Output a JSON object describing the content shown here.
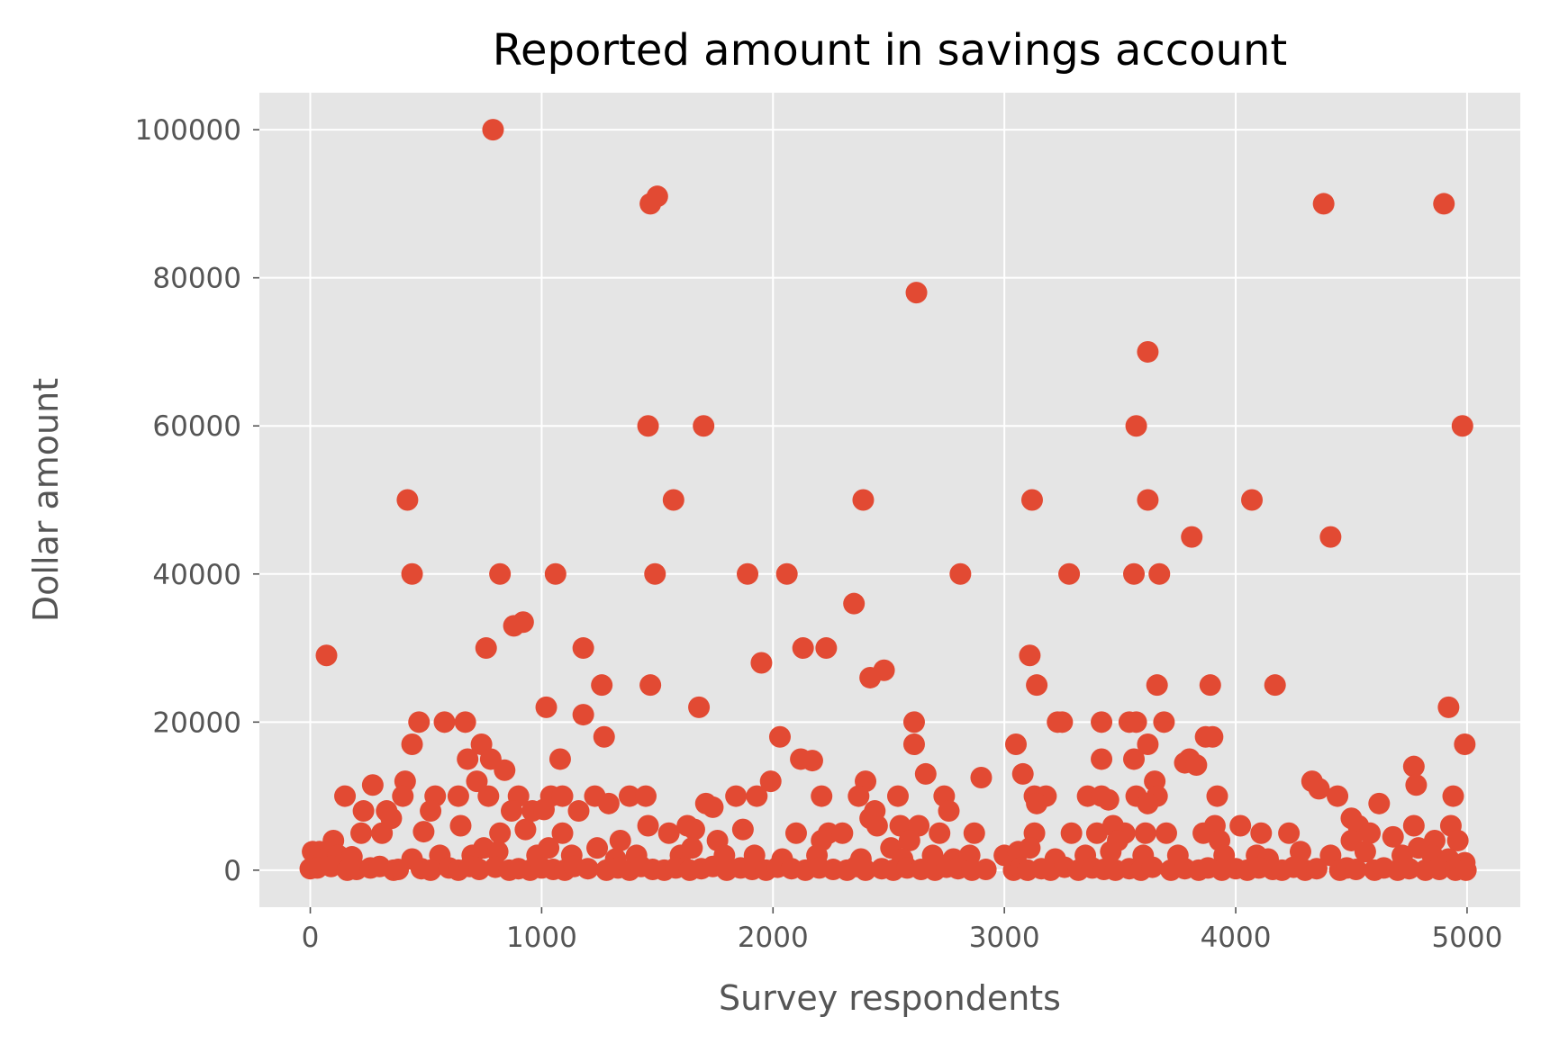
{
  "chart_data": {
    "type": "scatter",
    "title": "Reported amount in savings account",
    "xlabel": "Survey respondents",
    "ylabel": "Dollar amount",
    "xlim": [
      -220,
      5230
    ],
    "ylim": [
      -5000,
      105000
    ],
    "xticks": [
      0,
      1000,
      2000,
      3000,
      4000,
      5000
    ],
    "yticks": [
      0,
      20000,
      40000,
      60000,
      80000,
      100000
    ],
    "grid": true,
    "style": "ggplot",
    "background_color": "#e5e5e5",
    "marker_color": "#e24a33",
    "points": [
      [
        790,
        100000
      ],
      [
        1500,
        91000
      ],
      [
        1470,
        90000
      ],
      [
        4380,
        90000
      ],
      [
        4900,
        90000
      ],
      [
        2620,
        78000
      ],
      [
        3620,
        70000
      ],
      [
        1460,
        60000
      ],
      [
        1700,
        60000
      ],
      [
        3570,
        60000
      ],
      [
        4980,
        60000
      ],
      [
        420,
        50000
      ],
      [
        1570,
        50000
      ],
      [
        2390,
        50000
      ],
      [
        3120,
        50000
      ],
      [
        3620,
        50000
      ],
      [
        4070,
        50000
      ],
      [
        3810,
        45000
      ],
      [
        4410,
        45000
      ],
      [
        440,
        40000
      ],
      [
        820,
        40000
      ],
      [
        1060,
        40000
      ],
      [
        1490,
        40000
      ],
      [
        1890,
        40000
      ],
      [
        2060,
        40000
      ],
      [
        2810,
        40000
      ],
      [
        3280,
        40000
      ],
      [
        3560,
        40000
      ],
      [
        3670,
        40000
      ],
      [
        2350,
        36000
      ],
      [
        880,
        33000
      ],
      [
        920,
        33500
      ],
      [
        70,
        29000
      ],
      [
        760,
        30000
      ],
      [
        1180,
        30000
      ],
      [
        2130,
        30000
      ],
      [
        2230,
        30000
      ],
      [
        3110,
        29000
      ],
      [
        1950,
        28000
      ],
      [
        2480,
        27000
      ],
      [
        2420,
        26000
      ],
      [
        1470,
        25000
      ],
      [
        1260,
        25000
      ],
      [
        3140,
        25000
      ],
      [
        3660,
        25000
      ],
      [
        3890,
        25000
      ],
      [
        4170,
        25000
      ],
      [
        1020,
        22000
      ],
      [
        1680,
        22000
      ],
      [
        4920,
        22000
      ],
      [
        1180,
        21000
      ],
      [
        470,
        20000
      ],
      [
        580,
        20000
      ],
      [
        670,
        20000
      ],
      [
        2610,
        20000
      ],
      [
        3230,
        20000
      ],
      [
        3250,
        20000
      ],
      [
        3420,
        20000
      ],
      [
        3540,
        20000
      ],
      [
        3570,
        20000
      ],
      [
        3690,
        20000
      ],
      [
        1270,
        18000
      ],
      [
        2030,
        18000
      ],
      [
        3870,
        18000
      ],
      [
        3900,
        18000
      ],
      [
        440,
        17000
      ],
      [
        740,
        17000
      ],
      [
        2610,
        17000
      ],
      [
        3050,
        17000
      ],
      [
        3620,
        17000
      ],
      [
        4990,
        17000
      ],
      [
        680,
        15000
      ],
      [
        780,
        15000
      ],
      [
        1080,
        15000
      ],
      [
        2120,
        15000
      ],
      [
        2170,
        14800
      ],
      [
        3420,
        15000
      ],
      [
        3560,
        15000
      ],
      [
        3800,
        15000
      ],
      [
        3780,
        14500
      ],
      [
        4770,
        14000
      ],
      [
        840,
        13500
      ],
      [
        2660,
        13000
      ],
      [
        3080,
        13000
      ],
      [
        3830,
        14200
      ],
      [
        410,
        12000
      ],
      [
        720,
        12000
      ],
      [
        1990,
        12000
      ],
      [
        2400,
        12000
      ],
      [
        2900,
        12500
      ],
      [
        3650,
        12000
      ],
      [
        4330,
        12000
      ],
      [
        4360,
        11000
      ],
      [
        4780,
        11500
      ],
      [
        150,
        10000
      ],
      [
        270,
        11500
      ],
      [
        400,
        10000
      ],
      [
        540,
        10000
      ],
      [
        640,
        10000
      ],
      [
        770,
        10000
      ],
      [
        900,
        10000
      ],
      [
        1040,
        10000
      ],
      [
        1090,
        10000
      ],
      [
        1230,
        10000
      ],
      [
        1380,
        10000
      ],
      [
        1450,
        10000
      ],
      [
        1840,
        10000
      ],
      [
        1930,
        10000
      ],
      [
        2210,
        10000
      ],
      [
        2370,
        10000
      ],
      [
        2540,
        10000
      ],
      [
        2740,
        10000
      ],
      [
        3130,
        10000
      ],
      [
        3180,
        10000
      ],
      [
        3360,
        10000
      ],
      [
        3420,
        10000
      ],
      [
        3450,
        9500
      ],
      [
        3570,
        10000
      ],
      [
        3660,
        10000
      ],
      [
        3920,
        10000
      ],
      [
        4440,
        10000
      ],
      [
        4940,
        10000
      ],
      [
        1710,
        9000
      ],
      [
        1740,
        8500
      ],
      [
        3140,
        9000
      ],
      [
        4620,
        9000
      ],
      [
        3620,
        9000
      ],
      [
        230,
        8000
      ],
      [
        330,
        8000
      ],
      [
        520,
        8000
      ],
      [
        870,
        8000
      ],
      [
        960,
        8000
      ],
      [
        1010,
        8200
      ],
      [
        1160,
        8000
      ],
      [
        1290,
        9000
      ],
      [
        2440,
        8000
      ],
      [
        2760,
        8000
      ],
      [
        350,
        7000
      ],
      [
        2420,
        7000
      ],
      [
        4500,
        7000
      ],
      [
        220,
        5000
      ],
      [
        310,
        5000
      ],
      [
        490,
        5200
      ],
      [
        650,
        6000
      ],
      [
        820,
        5000
      ],
      [
        930,
        5500
      ],
      [
        1090,
        5000
      ],
      [
        1460,
        6000
      ],
      [
        1550,
        5000
      ],
      [
        1630,
        6000
      ],
      [
        1660,
        5500
      ],
      [
        1870,
        5500
      ],
      [
        2100,
        5000
      ],
      [
        2240,
        5000
      ],
      [
        2300,
        5000
      ],
      [
        2450,
        6000
      ],
      [
        2550,
        6000
      ],
      [
        2630,
        6000
      ],
      [
        2720,
        5000
      ],
      [
        2870,
        5000
      ],
      [
        3130,
        5000
      ],
      [
        3290,
        5000
      ],
      [
        3400,
        5000
      ],
      [
        3470,
        6000
      ],
      [
        3520,
        5000
      ],
      [
        3610,
        5000
      ],
      [
        3700,
        5000
      ],
      [
        3860,
        5000
      ],
      [
        3910,
        6000
      ],
      [
        4020,
        6000
      ],
      [
        4110,
        5000
      ],
      [
        4230,
        5000
      ],
      [
        4530,
        6000
      ],
      [
        4580,
        5000
      ],
      [
        4770,
        6000
      ],
      [
        4930,
        6000
      ],
      [
        100,
        4000
      ],
      [
        1340,
        4000
      ],
      [
        2210,
        4000
      ],
      [
        2590,
        4000
      ],
      [
        3490,
        4000
      ],
      [
        3930,
        4000
      ],
      [
        4500,
        4000
      ],
      [
        4680,
        4500
      ],
      [
        4960,
        4000
      ],
      [
        4860,
        4000
      ],
      [
        1760,
        4000
      ],
      [
        10,
        2500
      ],
      [
        40,
        2500
      ],
      [
        60,
        1500
      ],
      [
        120,
        2000
      ],
      [
        180,
        1800
      ],
      [
        440,
        1500
      ],
      [
        560,
        2000
      ],
      [
        700,
        2000
      ],
      [
        750,
        3000
      ],
      [
        810,
        2500
      ],
      [
        980,
        2000
      ],
      [
        1030,
        3000
      ],
      [
        1130,
        2000
      ],
      [
        1240,
        3000
      ],
      [
        1320,
        1500
      ],
      [
        1410,
        2000
      ],
      [
        1600,
        2000
      ],
      [
        1650,
        3000
      ],
      [
        1790,
        2000
      ],
      [
        1920,
        2000
      ],
      [
        2040,
        1500
      ],
      [
        2190,
        2000
      ],
      [
        2380,
        1500
      ],
      [
        2510,
        3000
      ],
      [
        2560,
        1500
      ],
      [
        2690,
        2000
      ],
      [
        2780,
        1500
      ],
      [
        2850,
        2000
      ],
      [
        3000,
        2000
      ],
      [
        3060,
        2500
      ],
      [
        3110,
        3000
      ],
      [
        3220,
        1500
      ],
      [
        3350,
        2000
      ],
      [
        3460,
        2500
      ],
      [
        3600,
        2000
      ],
      [
        3750,
        2000
      ],
      [
        3950,
        2000
      ],
      [
        4090,
        2000
      ],
      [
        4140,
        1500
      ],
      [
        4280,
        2500
      ],
      [
        4410,
        2000
      ],
      [
        4560,
        2500
      ],
      [
        4720,
        2000
      ],
      [
        4790,
        3000
      ],
      [
        4850,
        2000
      ],
      [
        4920,
        1500
      ],
      [
        4990,
        1000
      ],
      [
        0,
        200
      ],
      [
        30,
        300
      ],
      [
        90,
        500
      ],
      [
        160,
        0
      ],
      [
        200,
        100
      ],
      [
        260,
        300
      ],
      [
        300,
        500
      ],
      [
        360,
        0
      ],
      [
        380,
        100
      ],
      [
        480,
        200
      ],
      [
        520,
        0
      ],
      [
        600,
        300
      ],
      [
        640,
        0
      ],
      [
        690,
        500
      ],
      [
        730,
        100
      ],
      [
        800,
        400
      ],
      [
        860,
        0
      ],
      [
        900,
        200
      ],
      [
        950,
        0
      ],
      [
        1000,
        300
      ],
      [
        1050,
        100
      ],
      [
        1100,
        0
      ],
      [
        1140,
        500
      ],
      [
        1200,
        200
      ],
      [
        1280,
        0
      ],
      [
        1330,
        300
      ],
      [
        1380,
        0
      ],
      [
        1430,
        500
      ],
      [
        1480,
        100
      ],
      [
        1530,
        0
      ],
      [
        1580,
        300
      ],
      [
        1640,
        0
      ],
      [
        1690,
        200
      ],
      [
        1740,
        500
      ],
      [
        1800,
        0
      ],
      [
        1860,
        300
      ],
      [
        1910,
        100
      ],
      [
        1970,
        0
      ],
      [
        2020,
        400
      ],
      [
        2080,
        200
      ],
      [
        2140,
        0
      ],
      [
        2200,
        300
      ],
      [
        2260,
        100
      ],
      [
        2320,
        0
      ],
      [
        2360,
        500
      ],
      [
        2400,
        0
      ],
      [
        2470,
        200
      ],
      [
        2520,
        0
      ],
      [
        2580,
        300
      ],
      [
        2640,
        100
      ],
      [
        2700,
        0
      ],
      [
        2750,
        400
      ],
      [
        2800,
        200
      ],
      [
        2860,
        0
      ],
      [
        2920,
        100
      ],
      [
        3040,
        0
      ],
      [
        3070,
        300
      ],
      [
        3100,
        0
      ],
      [
        3160,
        200
      ],
      [
        3200,
        0
      ],
      [
        3260,
        400
      ],
      [
        3320,
        0
      ],
      [
        3380,
        300
      ],
      [
        3430,
        100
      ],
      [
        3480,
        0
      ],
      [
        3540,
        200
      ],
      [
        3590,
        0
      ],
      [
        3640,
        400
      ],
      [
        3720,
        0
      ],
      [
        3780,
        200
      ],
      [
        3840,
        0
      ],
      [
        3880,
        300
      ],
      [
        3940,
        0
      ],
      [
        4000,
        200
      ],
      [
        4050,
        0
      ],
      [
        4100,
        300
      ],
      [
        4160,
        100
      ],
      [
        4200,
        0
      ],
      [
        4250,
        400
      ],
      [
        4300,
        0
      ],
      [
        4350,
        200
      ],
      [
        4450,
        0
      ],
      [
        4480,
        300
      ],
      [
        4520,
        100
      ],
      [
        4600,
        0
      ],
      [
        4640,
        300
      ],
      [
        4700,
        0
      ],
      [
        4750,
        200
      ],
      [
        4820,
        0
      ],
      [
        4880,
        100
      ],
      [
        4950,
        0
      ],
      [
        4970,
        500
      ],
      [
        4995,
        0
      ]
    ]
  }
}
